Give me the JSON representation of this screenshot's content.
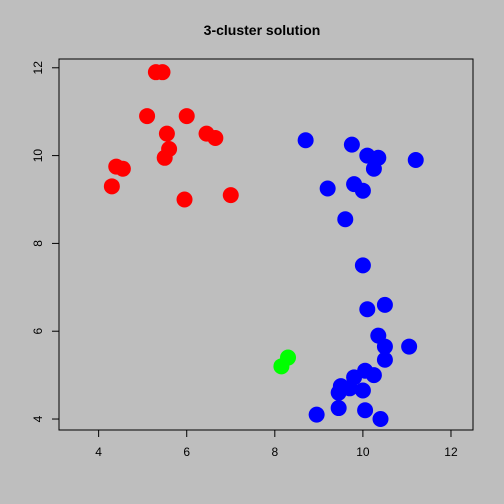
{
  "chart_data": {
    "type": "scatter",
    "title": "3-cluster solution",
    "xlabel": "",
    "ylabel": "",
    "xlim": [
      3.1,
      12.5
    ],
    "ylim": [
      3.75,
      12.2
    ],
    "xticks": [
      4,
      6,
      8,
      10,
      12
    ],
    "yticks": [
      4,
      6,
      8,
      10,
      12
    ],
    "grid": false,
    "legend": "none",
    "background": "#bebebe",
    "point_style": "filled-circle",
    "series": [
      {
        "color": "#ff0000",
        "points": [
          {
            "x": 5.3,
            "y": 11.9
          },
          {
            "x": 5.45,
            "y": 11.9
          },
          {
            "x": 5.1,
            "y": 10.9
          },
          {
            "x": 6.0,
            "y": 10.9
          },
          {
            "x": 5.55,
            "y": 10.5
          },
          {
            "x": 6.45,
            "y": 10.5
          },
          {
            "x": 6.65,
            "y": 10.4
          },
          {
            "x": 5.6,
            "y": 10.15
          },
          {
            "x": 5.5,
            "y": 9.95
          },
          {
            "x": 4.4,
            "y": 9.75
          },
          {
            "x": 4.55,
            "y": 9.7
          },
          {
            "x": 4.3,
            "y": 9.3
          },
          {
            "x": 7.0,
            "y": 9.1
          },
          {
            "x": 5.95,
            "y": 9.0
          }
        ]
      },
      {
        "color": "#0000ff",
        "points": [
          {
            "x": 8.7,
            "y": 10.35
          },
          {
            "x": 9.75,
            "y": 10.25
          },
          {
            "x": 10.1,
            "y": 10.0
          },
          {
            "x": 10.35,
            "y": 9.95
          },
          {
            "x": 11.2,
            "y": 9.9
          },
          {
            "x": 10.25,
            "y": 9.7
          },
          {
            "x": 9.8,
            "y": 9.35
          },
          {
            "x": 9.2,
            "y": 9.25
          },
          {
            "x": 10.0,
            "y": 9.2
          },
          {
            "x": 9.6,
            "y": 8.55
          },
          {
            "x": 10.0,
            "y": 7.5
          },
          {
            "x": 10.5,
            "y": 6.6
          },
          {
            "x": 10.1,
            "y": 6.5
          },
          {
            "x": 10.35,
            "y": 5.9
          },
          {
            "x": 10.5,
            "y": 5.65
          },
          {
            "x": 11.05,
            "y": 5.65
          },
          {
            "x": 10.5,
            "y": 5.35
          },
          {
            "x": 10.05,
            "y": 5.1
          },
          {
            "x": 10.25,
            "y": 5.0
          },
          {
            "x": 9.8,
            "y": 4.95
          },
          {
            "x": 9.5,
            "y": 4.75
          },
          {
            "x": 9.7,
            "y": 4.7
          },
          {
            "x": 9.45,
            "y": 4.6
          },
          {
            "x": 10.0,
            "y": 4.65
          },
          {
            "x": 9.45,
            "y": 4.25
          },
          {
            "x": 10.05,
            "y": 4.2
          },
          {
            "x": 8.95,
            "y": 4.1
          },
          {
            "x": 10.4,
            "y": 4.0
          }
        ]
      },
      {
        "color": "#00ff00",
        "points": [
          {
            "x": 8.3,
            "y": 5.4
          },
          {
            "x": 8.15,
            "y": 5.2
          }
        ]
      }
    ]
  }
}
